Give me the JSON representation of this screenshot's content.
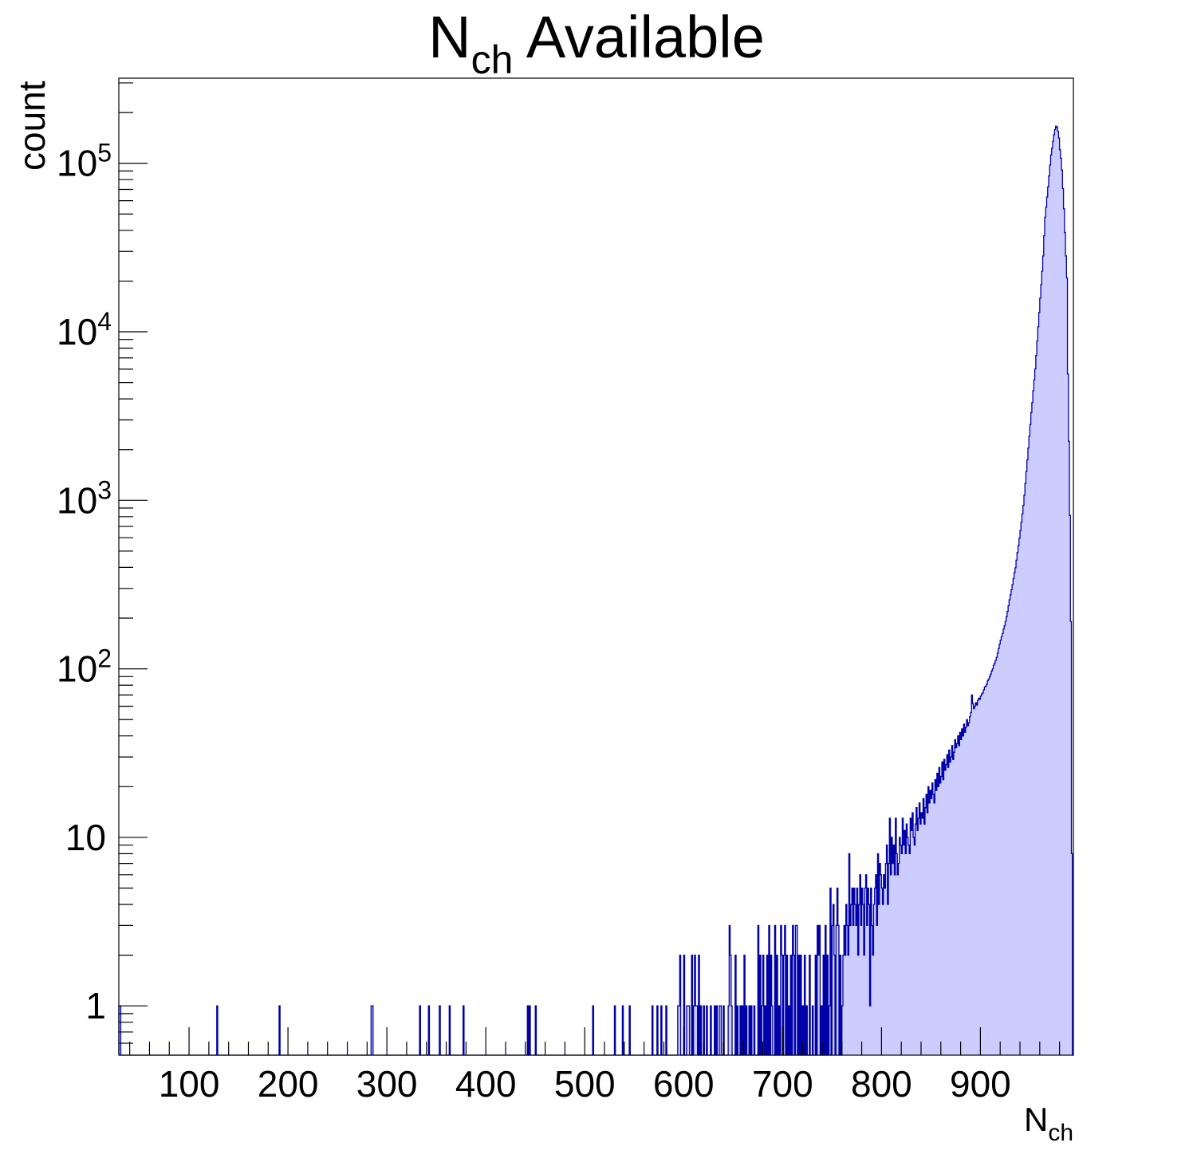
{
  "chart_data": {
    "type": "bar",
    "style": "step-histogram",
    "title": {
      "main": "N",
      "sub": "ch",
      "rest": " Available"
    },
    "xlabel": {
      "main": "N",
      "sub": "ch"
    },
    "ylabel": "count",
    "xlim": [
      29,
      994
    ],
    "ylim": [
      0.51,
      320000
    ],
    "yscale": "log",
    "grid": false,
    "legend": "none",
    "bin_width": 1,
    "x_ticks": [
      "100",
      "200",
      "300",
      "400",
      "500",
      "600",
      "700",
      "800",
      "900"
    ],
    "x_tick_values": [
      100,
      200,
      300,
      400,
      500,
      600,
      700,
      800,
      900
    ],
    "y_ticks": [
      {
        "value": 1,
        "base": "1",
        "exp": ""
      },
      {
        "value": 10,
        "base": "10",
        "exp": ""
      },
      {
        "value": 100,
        "base": "10",
        "exp": "2"
      },
      {
        "value": 1000,
        "base": "10",
        "exp": "3"
      },
      {
        "value": 10000,
        "base": "10",
        "exp": "4"
      },
      {
        "value": 100000,
        "base": "10",
        "exp": "5"
      }
    ],
    "colors": {
      "line": "#0000a8",
      "fill": "#ccccfe",
      "axis": "#000000"
    },
    "sparse_bins": [
      [
        29,
        1
      ],
      [
        30,
        1
      ],
      [
        128,
        1
      ],
      [
        191,
        1
      ],
      [
        284,
        1
      ],
      [
        285,
        1
      ],
      [
        333,
        1
      ],
      [
        342,
        1
      ],
      [
        353,
        1
      ],
      [
        363,
        1
      ],
      [
        377,
        1
      ],
      [
        442,
        1
      ],
      [
        444,
        1
      ],
      [
        450,
        1
      ],
      [
        508,
        1
      ],
      [
        530,
        1
      ],
      [
        538,
        1
      ],
      [
        545,
        1
      ],
      [
        568,
        1
      ],
      [
        573,
        1
      ],
      [
        577,
        1
      ],
      [
        582,
        1
      ],
      [
        594,
        1
      ],
      [
        595,
        1
      ],
      [
        596,
        2
      ],
      [
        600,
        2
      ],
      [
        603,
        1
      ],
      [
        604,
        1
      ],
      [
        605,
        1
      ],
      [
        608,
        2
      ],
      [
        610,
        1
      ],
      [
        611,
        2
      ],
      [
        612,
        1
      ],
      [
        613,
        1
      ],
      [
        615,
        2
      ],
      [
        617,
        1
      ],
      [
        620,
        1
      ],
      [
        623,
        1
      ],
      [
        627,
        1
      ],
      [
        631,
        1
      ],
      [
        633,
        1
      ],
      [
        636,
        1
      ],
      [
        637,
        1
      ],
      [
        640,
        1
      ],
      [
        645,
        1
      ],
      [
        646,
        3
      ],
      [
        647,
        2
      ],
      [
        648,
        1
      ],
      [
        652,
        2
      ],
      [
        654,
        1
      ],
      [
        657,
        1
      ],
      [
        659,
        1
      ],
      [
        661,
        2
      ],
      [
        663,
        1
      ],
      [
        666,
        1
      ],
      [
        668,
        1
      ],
      [
        671,
        1
      ],
      [
        675,
        3
      ],
      [
        677,
        2
      ],
      [
        679,
        1
      ],
      [
        680,
        2
      ],
      [
        682,
        1
      ],
      [
        684,
        2
      ],
      [
        686,
        3
      ],
      [
        688,
        2
      ],
      [
        689,
        1
      ],
      [
        692,
        3
      ],
      [
        694,
        2
      ],
      [
        696,
        1
      ],
      [
        698,
        3
      ],
      [
        699,
        2
      ],
      [
        701,
        2
      ],
      [
        702,
        3
      ],
      [
        704,
        2
      ],
      [
        706,
        1
      ],
      [
        708,
        2
      ],
      [
        710,
        3
      ],
      [
        711,
        2
      ],
      [
        713,
        3
      ],
      [
        714,
        3
      ],
      [
        716,
        2
      ],
      [
        718,
        2
      ],
      [
        720,
        1
      ],
      [
        722,
        2
      ],
      [
        724,
        1
      ],
      [
        727,
        2
      ],
      [
        730,
        1
      ],
      [
        733,
        2
      ],
      [
        735,
        3
      ],
      [
        736,
        2
      ],
      [
        737,
        3
      ],
      [
        739,
        1
      ],
      [
        741,
        2
      ],
      [
        743,
        3
      ],
      [
        745,
        2
      ],
      [
        747,
        1
      ],
      [
        748,
        5
      ],
      [
        750,
        3
      ],
      [
        751,
        4
      ],
      [
        752,
        2
      ],
      [
        754,
        3
      ],
      [
        755,
        5
      ],
      [
        756,
        3
      ],
      [
        758,
        2
      ],
      [
        760,
        1
      ],
      [
        761,
        2
      ],
      [
        762,
        3
      ],
      [
        763,
        2
      ],
      [
        764,
        4
      ],
      [
        765,
        3
      ],
      [
        766,
        2
      ],
      [
        767,
        8
      ],
      [
        768,
        3
      ],
      [
        769,
        4
      ],
      [
        770,
        5
      ],
      [
        771,
        3
      ],
      [
        772,
        5
      ],
      [
        773,
        4
      ],
      [
        774,
        3
      ],
      [
        775,
        5
      ],
      [
        776,
        2
      ],
      [
        777,
        4
      ],
      [
        778,
        6
      ],
      [
        779,
        3
      ],
      [
        780,
        5
      ],
      [
        781,
        4
      ],
      [
        782,
        2
      ],
      [
        783,
        5
      ],
      [
        784,
        6
      ],
      [
        785,
        3
      ],
      [
        786,
        5
      ],
      [
        787,
        4
      ],
      [
        788,
        1
      ],
      [
        789,
        5
      ],
      [
        790,
        3
      ],
      [
        791,
        2
      ],
      [
        792,
        4
      ],
      [
        793,
        5
      ],
      [
        794,
        6
      ],
      [
        795,
        3
      ],
      [
        796,
        8
      ],
      [
        797,
        4
      ],
      [
        798,
        7
      ],
      [
        799,
        6
      ],
      [
        800,
        5
      ],
      [
        801,
        4
      ],
      [
        802,
        6
      ],
      [
        803,
        5
      ],
      [
        804,
        7
      ],
      [
        805,
        9
      ],
      [
        806,
        4
      ],
      [
        807,
        7
      ],
      [
        808,
        13
      ],
      [
        809,
        6
      ],
      [
        810,
        10
      ],
      [
        811,
        7
      ],
      [
        812,
        9
      ],
      [
        813,
        6
      ],
      [
        814,
        13
      ],
      [
        815,
        8
      ],
      [
        816,
        6
      ],
      [
        817,
        7
      ],
      [
        818,
        10
      ],
      [
        819,
        9
      ],
      [
        820,
        8
      ],
      [
        821,
        13
      ],
      [
        822,
        9
      ],
      [
        823,
        11
      ],
      [
        824,
        8
      ],
      [
        825,
        12
      ],
      [
        826,
        10
      ],
      [
        827,
        9
      ],
      [
        828,
        8
      ],
      [
        829,
        13
      ],
      [
        830,
        11
      ],
      [
        831,
        14
      ],
      [
        832,
        10
      ],
      [
        833,
        9
      ],
      [
        834,
        12
      ],
      [
        835,
        15
      ],
      [
        836,
        11
      ],
      [
        837,
        13
      ],
      [
        838,
        16
      ],
      [
        839,
        12
      ],
      [
        840,
        14
      ],
      [
        841,
        13
      ],
      [
        842,
        17
      ],
      [
        843,
        12
      ],
      [
        844,
        15
      ],
      [
        845,
        18
      ],
      [
        846,
        14
      ],
      [
        847,
        20
      ],
      [
        848,
        16
      ],
      [
        849,
        19
      ],
      [
        850,
        17
      ],
      [
        851,
        21
      ],
      [
        852,
        18
      ],
      [
        853,
        16
      ],
      [
        854,
        22
      ],
      [
        855,
        19
      ],
      [
        856,
        24
      ],
      [
        857,
        20
      ],
      [
        858,
        26
      ],
      [
        859,
        21
      ],
      [
        860,
        23
      ],
      [
        861,
        28
      ],
      [
        862,
        22
      ],
      [
        863,
        29
      ],
      [
        864,
        25
      ],
      [
        865,
        27
      ],
      [
        866,
        31
      ],
      [
        867,
        26
      ],
      [
        868,
        33
      ],
      [
        869,
        28
      ],
      [
        870,
        30
      ],
      [
        871,
        35
      ],
      [
        872,
        29
      ],
      [
        873,
        32
      ],
      [
        874,
        38
      ],
      [
        875,
        34
      ],
      [
        876,
        36
      ],
      [
        877,
        40
      ],
      [
        878,
        35
      ],
      [
        879,
        42
      ],
      [
        880,
        38
      ],
      [
        881,
        44
      ],
      [
        882,
        40
      ],
      [
        883,
        47
      ],
      [
        884,
        42
      ],
      [
        885,
        45
      ],
      [
        886,
        50
      ],
      [
        887,
        46
      ],
      [
        888,
        48
      ],
      [
        889,
        52
      ],
      [
        890,
        55
      ],
      [
        891,
        70
      ],
      [
        892,
        62
      ],
      [
        893,
        58
      ],
      [
        894,
        60
      ],
      [
        895,
        63
      ],
      [
        896,
        61
      ],
      [
        897,
        65
      ],
      [
        898,
        67
      ],
      [
        899,
        66
      ]
    ],
    "dense_bins": {
      "start": 900,
      "counts": [
        69,
        71,
        72,
        75,
        78,
        79,
        81,
        85,
        87,
        90,
        93,
        97,
        100,
        105,
        108,
        112,
        117,
        124,
        132,
        140,
        148,
        155,
        162,
        172,
        180,
        191,
        204,
        219,
        237,
        257,
        275,
        295,
        316,
        343,
        372,
        398,
        442,
        490,
        537,
        596,
        661,
        741,
        832,
        933,
        1072,
        1259,
        1479,
        1738,
        2042,
        2399,
        2818,
        3311,
        3802,
        4467,
        5188,
        6026,
        7244,
        8810,
        10715,
        13032,
        15849,
        19055,
        22909,
        28184,
        37154,
        47863,
        54954,
        63096,
        72444,
        84140,
        97724,
        112202,
        123027,
        134896,
        147911,
        158489,
        165959,
        164059,
        154882,
        141254,
        120226,
        107152,
        91201,
        70795,
        53703,
        38905,
        28184,
        20893,
        5623,
        2239,
        813,
        191,
        8
      ]
    }
  }
}
